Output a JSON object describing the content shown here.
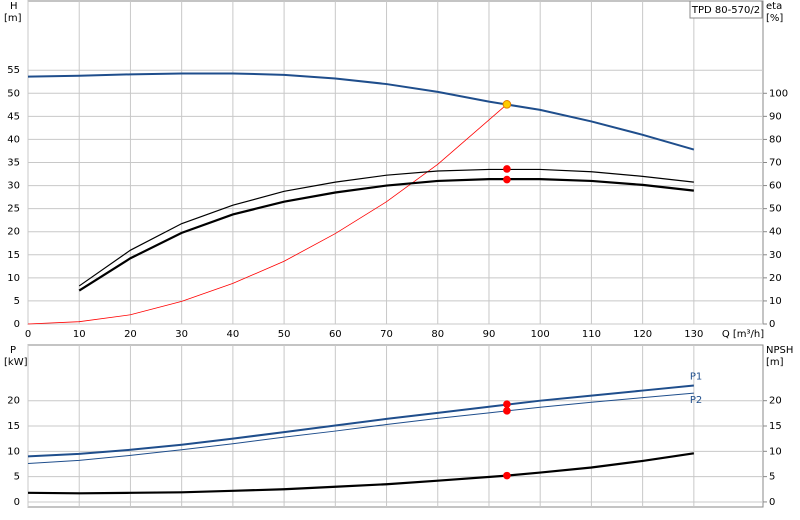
{
  "chart_data": [
    {
      "type": "line",
      "title": "TPD 80-570/2",
      "ylabel": "H",
      "yunit": "[m]",
      "y2label": "eta",
      "y2unit": "[%]",
      "xlabel": "Q [m³/h]",
      "xlim": [
        0,
        143.5
      ],
      "xticks": [
        0,
        10,
        20,
        30,
        40,
        50,
        60,
        70,
        80,
        90,
        100,
        110,
        120,
        130
      ],
      "show_xtick_labels": true,
      "ylim": [
        0,
        70
      ],
      "yticks": [
        0,
        5,
        10,
        15,
        20,
        25,
        30,
        35,
        40,
        45,
        50,
        55
      ],
      "y2lim": [
        0,
        140
      ],
      "y2ticks": [
        0,
        10,
        20,
        30,
        40,
        50,
        60,
        70,
        80,
        90,
        100
      ],
      "grid": true,
      "series": [
        {
          "color": "#1f4e8c",
          "line_width": 2,
          "x": [
            0,
            10,
            20,
            30,
            40,
            50,
            60,
            70,
            80,
            90,
            100,
            110,
            120,
            130
          ],
          "values": [
            53.6,
            53.8,
            54.1,
            54.3,
            54.3,
            54.0,
            53.2,
            52.0,
            50.3,
            48.2,
            46.4,
            43.9,
            41.0,
            37.8
          ]
        },
        {
          "color": "#ff0000",
          "line_width": 0.8,
          "x": [
            0,
            10,
            20,
            30,
            40,
            50,
            60,
            70,
            80,
            93.5
          ],
          "values": [
            0,
            0.5,
            2,
            4.9,
            8.8,
            13.6,
            19.6,
            26.5,
            34.6,
            47.6
          ]
        },
        {
          "color": "#000000",
          "line_width": 1.2,
          "axis": "y2",
          "x": [
            10,
            20,
            30,
            40,
            50,
            60,
            70,
            80,
            90,
            100,
            110,
            120,
            130
          ],
          "values": [
            16.5,
            32,
            43.5,
            51.5,
            57.5,
            61.5,
            64.5,
            66.3,
            67,
            67,
            66,
            64,
            61.5
          ]
        },
        {
          "color": "#000000",
          "line_width": 2.2,
          "axis": "y2",
          "x": [
            10,
            20,
            30,
            40,
            50,
            60,
            70,
            80,
            90,
            100,
            110,
            120,
            130
          ],
          "values": [
            14.5,
            28.5,
            39.5,
            47.5,
            53,
            57,
            60,
            62,
            62.8,
            62.8,
            62,
            60.3,
            57.8
          ]
        },
        {
          "color": "#ffcc00",
          "marker": true,
          "x": [
            93.5
          ],
          "values": [
            47.6
          ]
        },
        {
          "color": "#ff0000",
          "marker": true,
          "axis": "y2",
          "x": [
            93.5
          ],
          "values": [
            67.2
          ]
        },
        {
          "color": "#ff0000",
          "marker": true,
          "axis": "y2",
          "x": [
            93.5
          ],
          "values": [
            62.6
          ]
        }
      ]
    },
    {
      "type": "line",
      "ylabel": "P",
      "yunit": "[kW]",
      "y2label": "NPSH",
      "y2unit": "[m]",
      "xlim": [
        0,
        143.5
      ],
      "xticks": [
        0,
        10,
        20,
        30,
        40,
        50,
        60,
        70,
        80,
        90,
        100,
        110,
        120,
        130
      ],
      "show_xtick_labels": false,
      "ylim": [
        -1,
        31
      ],
      "yticks": [
        0,
        5,
        10,
        15,
        20
      ],
      "y2lim": [
        -1,
        31
      ],
      "y2ticks": [
        0,
        5,
        10,
        15,
        20
      ],
      "grid": true,
      "series": [
        {
          "name": "P1",
          "color": "#1f4e8c",
          "line_width": 2,
          "x": [
            0,
            10,
            20,
            30,
            40,
            50,
            60,
            70,
            80,
            90,
            100,
            110,
            120,
            130
          ],
          "values": [
            9.0,
            9.5,
            10.3,
            11.3,
            12.5,
            13.8,
            15.1,
            16.4,
            17.6,
            18.8,
            20,
            21,
            22,
            23
          ]
        },
        {
          "name": "P2",
          "color": "#1f4e8c",
          "line_width": 1,
          "x": [
            0,
            10,
            20,
            30,
            40,
            50,
            60,
            70,
            80,
            90,
            100,
            110,
            120,
            130
          ],
          "values": [
            7.6,
            8.2,
            9.2,
            10.3,
            11.5,
            12.8,
            14,
            15.3,
            16.5,
            17.6,
            18.7,
            19.7,
            20.6,
            21.5
          ]
        },
        {
          "color": "#000000",
          "line_width": 2.2,
          "axis": "y2",
          "x": [
            0,
            10,
            20,
            30,
            40,
            50,
            60,
            70,
            80,
            93.5,
            100,
            110,
            120,
            130
          ],
          "values": [
            1.8,
            1.7,
            1.8,
            1.9,
            2.2,
            2.5,
            3.0,
            3.5,
            4.2,
            5.2,
            5.8,
            6.8,
            8.1,
            9.6
          ]
        },
        {
          "color": "#ff0000",
          "marker": true,
          "x": [
            93.5
          ],
          "values": [
            19.3
          ]
        },
        {
          "color": "#ff0000",
          "marker": true,
          "x": [
            93.5
          ],
          "values": [
            18.0
          ]
        },
        {
          "color": "#ff0000",
          "marker": true,
          "axis": "y2",
          "x": [
            93.5
          ],
          "values": [
            5.2
          ]
        }
      ]
    }
  ]
}
